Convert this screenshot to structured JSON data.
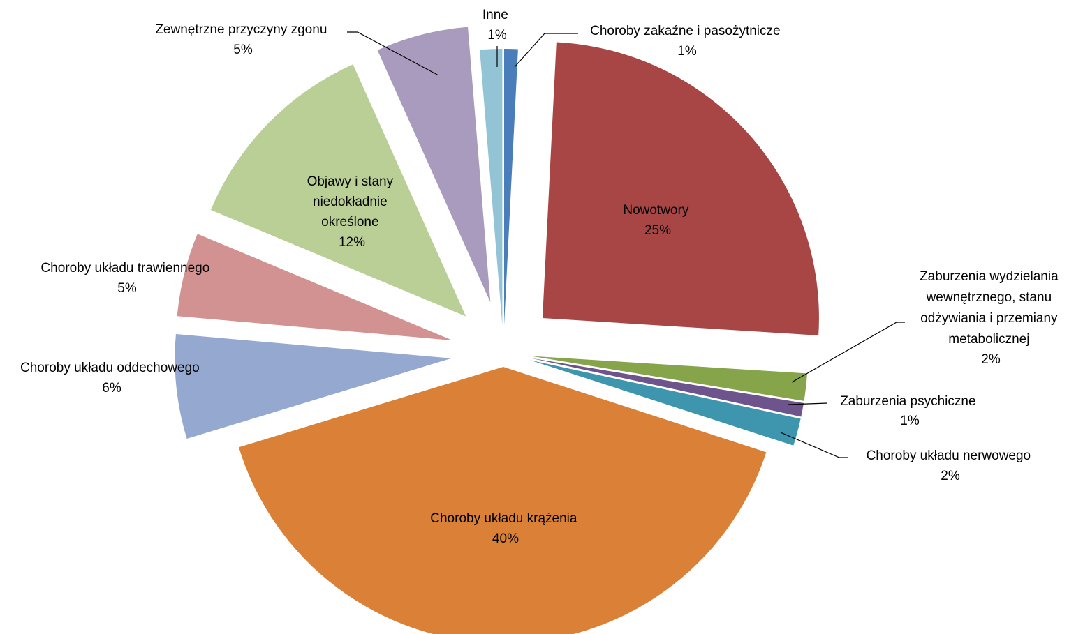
{
  "chart_data": {
    "type": "pie",
    "title": "",
    "start_angle_deg": 0,
    "direction": "clockwise",
    "exploded": true,
    "slices": [
      {
        "label": "Choroby zakaźne i pasożytnicze",
        "percent_label": "1%",
        "value": 0.8,
        "color": "#4A7EBB"
      },
      {
        "label": "Nowotwory",
        "percent_label": "25%",
        "value": 25.2,
        "color": "#A84645"
      },
      {
        "label": "Zaburzenia wydzielania wewnętrznego, stanu odżywiania i przemiany metabolicznej",
        "percent_label": "2%",
        "value": 1.6,
        "color": "#86A44A"
      },
      {
        "label": "Zaburzenia psychiczne",
        "percent_label": "1%",
        "value": 0.8,
        "color": "#6E548D"
      },
      {
        "label": "Choroby układu nerwowego",
        "percent_label": "2%",
        "value": 1.6,
        "color": "#3D96AE"
      },
      {
        "label": "Choroby układu krążenia",
        "percent_label": "40%",
        "value": 40.3,
        "color": "#DA8137"
      },
      {
        "label": "Choroby układu oddechowego",
        "percent_label": "6%",
        "value": 6.1,
        "color": "#95A9D0"
      },
      {
        "label": "Choroby układu trawiennego",
        "percent_label": "5%",
        "value": 4.9,
        "color": "#D29291"
      },
      {
        "label": "Objawy i stany niedokładnie określone",
        "percent_label": "12%",
        "value": 12.0,
        "color": "#BACF96"
      },
      {
        "label": "Zewnętrzne przyczyny zgonu",
        "percent_label": "5%",
        "value": 5.4,
        "color": "#A99BBD"
      },
      {
        "label": "Inne",
        "percent_label": "1%",
        "value": 1.3,
        "color": "#93C4D5"
      }
    ]
  },
  "labels": {
    "infectious": {
      "line1": "Choroby zakaźne i pasożytnicze",
      "pct": "1%"
    },
    "cancer": {
      "line1": "Nowotwory",
      "pct": "25%"
    },
    "endocrine": {
      "line1": "Zaburzenia wydzielania",
      "line2": "wewnętrznego, stanu",
      "line3": "odżywiania i przemiany",
      "line4": "metabolicznej",
      "pct": "2%"
    },
    "mental": {
      "line1": "Zaburzenia psychiczne",
      "pct": "1%"
    },
    "nervous": {
      "line1": "Choroby układu nerwowego",
      "pct": "2%"
    },
    "circulatory": {
      "line1": "Choroby układu krążenia",
      "pct": "40%"
    },
    "respiratory": {
      "line1": "Choroby układu oddechowego",
      "pct": "6%"
    },
    "digestive": {
      "line1": "Choroby układu trawiennego",
      "pct": "5%"
    },
    "illdefined": {
      "line1": "Objawy i stany",
      "line2": "niedokładnie",
      "line3": "określone",
      "pct": "12%"
    },
    "external": {
      "line1": "Zewnętrzne przyczyny  zgonu",
      "pct": "5%"
    },
    "other": {
      "line1": "Inne",
      "pct": "1%"
    }
  }
}
